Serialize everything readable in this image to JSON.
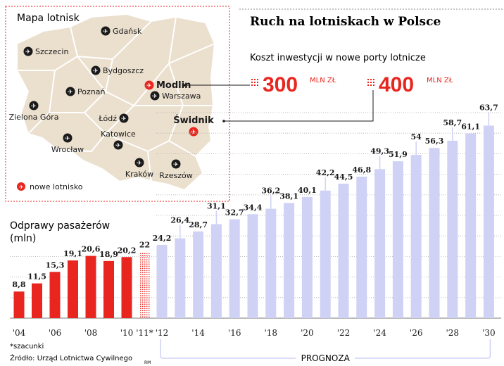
{
  "colors": {
    "historical": "#e8261f",
    "forecast": "#cfd1f5",
    "new_airport": "#e8261f",
    "map_fill": "#ebdfcd",
    "map_border": "#e8261f"
  },
  "map": {
    "title": "Mapa lotnisk",
    "legend": "nowe lotnisko",
    "airports": [
      {
        "name": "Gdańsk",
        "type": "existing"
      },
      {
        "name": "Szczecin",
        "type": "existing"
      },
      {
        "name": "Bydgoszcz",
        "type": "existing"
      },
      {
        "name": "Poznań",
        "type": "existing"
      },
      {
        "name": "Modlin",
        "type": "new"
      },
      {
        "name": "Warszawa",
        "type": "existing"
      },
      {
        "name": "Zielona Góra",
        "type": "existing"
      },
      {
        "name": "Łódź",
        "type": "existing"
      },
      {
        "name": "Świdnik",
        "type": "new"
      },
      {
        "name": "Wrocław",
        "type": "existing"
      },
      {
        "name": "Katowice",
        "type": "existing"
      },
      {
        "name": "Kraków",
        "type": "existing"
      },
      {
        "name": "Rzeszów",
        "type": "existing"
      }
    ]
  },
  "header": {
    "title": "Ruch na lotniskach w Polsce",
    "subtitle": "Koszt inwestycji w nowe porty lotnicze",
    "costs": [
      {
        "airport": "Modlin",
        "value": "300",
        "unit": "MLN ZŁ"
      },
      {
        "airport": "Świdnik",
        "value": "400",
        "unit": "MLN ZŁ"
      }
    ]
  },
  "chart_data": {
    "type": "bar",
    "ylabel": "Odprawy pasażerów\n(mln)",
    "ylim": [
      0,
      70
    ],
    "grid": "horizontal dotted",
    "series": [
      {
        "name": "",
        "years": [
          2004,
          2005,
          2006,
          2007,
          2008,
          2009,
          2010
        ],
        "values": [
          8.8,
          11.5,
          15.3,
          19.1,
          20.6,
          18.9,
          20.2
        ],
        "labels": [
          "8,8",
          "11,5",
          "15,3",
          "19,1",
          "20,6",
          "18,9",
          "20,2"
        ],
        "kind": "historical"
      },
      {
        "name": "",
        "years": [
          2011
        ],
        "values": [
          22
        ],
        "labels": [
          "22"
        ],
        "kind": "estimate"
      },
      {
        "name": "PROGNOZA",
        "years": [
          2012,
          2013,
          2014,
          2015,
          2016,
          2017,
          2018,
          2019,
          2020,
          2021,
          2022,
          2023,
          2024,
          2025,
          2026,
          2027,
          2028,
          2029,
          2030
        ],
        "values": [
          24.2,
          26.4,
          28.7,
          31.1,
          32.7,
          34.4,
          36.2,
          38.1,
          40.1,
          42.2,
          44.5,
          46.8,
          49.3,
          51.9,
          54,
          56.3,
          58.7,
          61.1,
          63.7
        ],
        "labels": [
          "24,2",
          "26,4",
          "28,7",
          "31,1",
          "32,7",
          "34,4",
          "36,2",
          "38,1",
          "40,1",
          "42,2",
          "44,5",
          "46,8",
          "49,3",
          "51,9",
          "54",
          "56,3",
          "58,7",
          "61,1",
          "63,7"
        ],
        "kind": "forecast"
      }
    ],
    "x_tick_labels": [
      "'04",
      "'06",
      "'08",
      "'10",
      "'11*",
      "'12",
      "'14",
      "'16",
      "'18",
      "'20",
      "'22",
      "'24",
      "'26",
      "'28",
      "'30"
    ],
    "forecast_label": "PROGNOZA"
  },
  "footer": {
    "note": "*szacunki",
    "source": "Źródło: Urząd Lotnictwa Cywilnego",
    "credit": "RM"
  }
}
